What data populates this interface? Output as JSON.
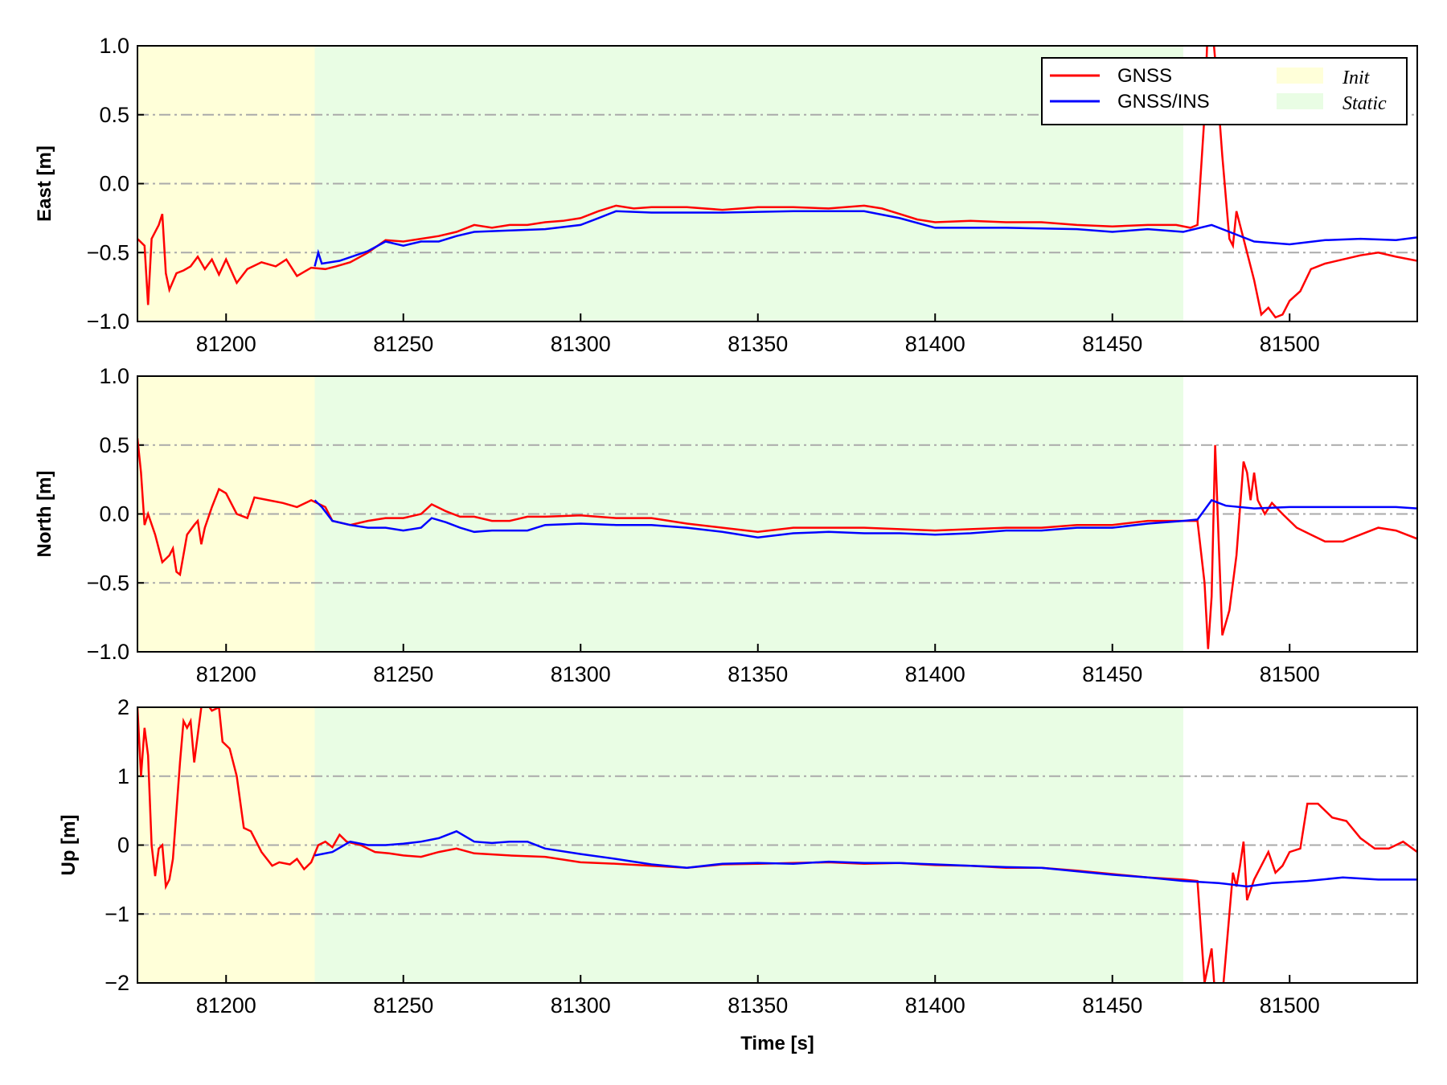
{
  "chart_data": [
    {
      "type": "line",
      "ylabel": "East [m]",
      "xlim": [
        81175,
        81536
      ],
      "ylim": [
        -1,
        1
      ],
      "yticks": [
        "1.0",
        "0.5",
        "0.0",
        "−0.5",
        "−1.0"
      ],
      "ytick_values": [
        1,
        0.5,
        0,
        -0.5,
        -1
      ],
      "xticks": [
        "81200",
        "81250",
        "81300",
        "81350",
        "81400",
        "81450",
        "81500"
      ],
      "series": [
        {
          "name": "GNSS",
          "color": "#ff0000",
          "x": [
            81175,
            81177,
            81178,
            81179,
            81181,
            81182,
            81183,
            81184,
            81186,
            81188,
            81190,
            81192,
            81194,
            81196,
            81198,
            81200,
            81203,
            81206,
            81210,
            81214,
            81217,
            81220,
            81224,
            81228,
            81231,
            81235,
            81240,
            81245,
            81250,
            81255,
            81260,
            81265,
            81270,
            81275,
            81280,
            81285,
            81290,
            81295,
            81300,
            81305,
            81310,
            81315,
            81320,
            81330,
            81340,
            81350,
            81360,
            81370,
            81380,
            81385,
            81390,
            81395,
            81400,
            81410,
            81420,
            81430,
            81440,
            81450,
            81460,
            81468,
            81472,
            81474,
            81476,
            81477,
            81478,
            81479,
            81481,
            81483,
            81484,
            81485,
            81487,
            81490,
            81492,
            81494,
            81496,
            81498,
            81500,
            81503,
            81506,
            81510,
            81515,
            81520,
            81525,
            81530,
            81536
          ],
          "y": [
            -0.4,
            -0.45,
            -0.88,
            -0.4,
            -0.3,
            -0.22,
            -0.65,
            -0.77,
            -0.65,
            -0.63,
            -0.6,
            -0.53,
            -0.62,
            -0.55,
            -0.66,
            -0.55,
            -0.72,
            -0.62,
            -0.57,
            -0.6,
            -0.55,
            -0.67,
            -0.61,
            -0.62,
            -0.6,
            -0.57,
            -0.5,
            -0.41,
            -0.42,
            -0.4,
            -0.38,
            -0.35,
            -0.3,
            -0.32,
            -0.3,
            -0.3,
            -0.28,
            -0.27,
            -0.25,
            -0.2,
            -0.16,
            -0.18,
            -0.17,
            -0.17,
            -0.19,
            -0.17,
            -0.17,
            -0.18,
            -0.16,
            -0.18,
            -0.22,
            -0.26,
            -0.28,
            -0.27,
            -0.28,
            -0.28,
            -0.3,
            -0.31,
            -0.3,
            -0.3,
            -0.32,
            -0.3,
            0.5,
            1.2,
            1.2,
            0.9,
            0.2,
            -0.4,
            -0.45,
            -0.2,
            -0.4,
            -0.7,
            -0.95,
            -0.9,
            -0.97,
            -0.95,
            -0.85,
            -0.78,
            -0.62,
            -0.58,
            -0.55,
            -0.52,
            -0.5,
            -0.53,
            -0.56
          ]
        },
        {
          "name": "GNSS/INS",
          "color": "#0000ff",
          "x": [
            81225,
            81226,
            81227,
            81232,
            81240,
            81245,
            81250,
            81255,
            81260,
            81265,
            81270,
            81280,
            81290,
            81300,
            81305,
            81310,
            81320,
            81340,
            81360,
            81380,
            81390,
            81400,
            81420,
            81440,
            81450,
            81460,
            81470,
            81478,
            81483,
            81490,
            81500,
            81510,
            81520,
            81530,
            81536
          ],
          "y": [
            -0.6,
            -0.5,
            -0.58,
            -0.56,
            -0.49,
            -0.42,
            -0.45,
            -0.42,
            -0.42,
            -0.38,
            -0.35,
            -0.34,
            -0.33,
            -0.3,
            -0.25,
            -0.2,
            -0.21,
            -0.21,
            -0.2,
            -0.2,
            -0.25,
            -0.32,
            -0.32,
            -0.33,
            -0.35,
            -0.33,
            -0.35,
            -0.3,
            -0.35,
            -0.42,
            -0.44,
            -0.41,
            -0.4,
            -0.41,
            -0.39
          ]
        }
      ],
      "shaded": [
        {
          "name": "Init",
          "from": 81175,
          "to": 81225,
          "color": "#ffffd9"
        },
        {
          "name": "Static",
          "from": 81225,
          "to": 81470,
          "color": "#e9fde4"
        }
      ],
      "legend": {
        "placement": "top-right",
        "entries": [
          "GNSS",
          "GNSS/INS",
          "Init",
          "Static"
        ]
      },
      "grid": "horizontal dash-dot"
    },
    {
      "type": "line",
      "ylabel": "North [m]",
      "xlim": [
        81175,
        81536
      ],
      "ylim": [
        -1,
        1
      ],
      "yticks": [
        "1.0",
        "0.5",
        "0.0",
        "−0.5",
        "−1.0"
      ],
      "ytick_values": [
        1,
        0.5,
        0,
        -0.5,
        -1
      ],
      "xticks": [
        "81200",
        "81250",
        "81300",
        "81350",
        "81400",
        "81450",
        "81500"
      ],
      "series": [
        {
          "name": "GNSS",
          "color": "#ff0000",
          "x": [
            81175,
            81176,
            81177,
            81178,
            81180,
            81182,
            81184,
            81185,
            81186,
            81187,
            81189,
            81191,
            81192,
            81193,
            81194,
            81196,
            81198,
            81200,
            81203,
            81206,
            81208,
            81212,
            81216,
            81220,
            81224,
            81228,
            81230,
            81235,
            81240,
            81245,
            81250,
            81255,
            81258,
            81262,
            81266,
            81270,
            81275,
            81280,
            81285,
            81290,
            81300,
            81310,
            81320,
            81330,
            81340,
            81350,
            81360,
            81370,
            81380,
            81390,
            81400,
            81410,
            81420,
            81430,
            81440,
            81450,
            81460,
            81470,
            81474,
            81476,
            81477,
            81478,
            81479,
            81480,
            81481,
            81483,
            81485,
            81487,
            81488,
            81489,
            81490,
            81491,
            81493,
            81495,
            81498,
            81502,
            81506,
            81510,
            81515,
            81520,
            81525,
            81530,
            81536
          ],
          "y": [
            0.55,
            0.3,
            -0.08,
            0.0,
            -0.15,
            -0.35,
            -0.3,
            -0.25,
            -0.42,
            -0.44,
            -0.15,
            -0.08,
            -0.05,
            -0.22,
            -0.1,
            0.05,
            0.18,
            0.15,
            0.0,
            -0.03,
            0.12,
            0.1,
            0.08,
            0.05,
            0.1,
            0.05,
            -0.05,
            -0.08,
            -0.05,
            -0.03,
            -0.03,
            0.0,
            0.07,
            0.02,
            -0.02,
            -0.02,
            -0.05,
            -0.05,
            -0.02,
            -0.02,
            -0.01,
            -0.03,
            -0.03,
            -0.07,
            -0.1,
            -0.13,
            -0.1,
            -0.1,
            -0.1,
            -0.11,
            -0.12,
            -0.11,
            -0.1,
            -0.1,
            -0.08,
            -0.08,
            -0.05,
            -0.05,
            -0.05,
            -0.5,
            -0.98,
            -0.6,
            0.5,
            -0.2,
            -0.88,
            -0.7,
            -0.3,
            0.38,
            0.3,
            0.1,
            0.3,
            0.1,
            0.0,
            0.08,
            0.0,
            -0.1,
            -0.15,
            -0.2,
            -0.2,
            -0.15,
            -0.1,
            -0.12,
            -0.18
          ]
        },
        {
          "name": "GNSS/INS",
          "color": "#0000ff",
          "x": [
            81225,
            81227,
            81230,
            81235,
            81240,
            81245,
            81250,
            81255,
            81258,
            81262,
            81266,
            81270,
            81275,
            81280,
            81285,
            81290,
            81300,
            81310,
            81320,
            81330,
            81340,
            81350,
            81360,
            81370,
            81380,
            81390,
            81400,
            81410,
            81420,
            81430,
            81440,
            81450,
            81460,
            81470,
            81474,
            81478,
            81482,
            81490,
            81500,
            81510,
            81520,
            81530,
            81536
          ],
          "y": [
            0.1,
            0.05,
            -0.05,
            -0.08,
            -0.1,
            -0.1,
            -0.12,
            -0.1,
            -0.03,
            -0.06,
            -0.1,
            -0.13,
            -0.12,
            -0.12,
            -0.12,
            -0.08,
            -0.07,
            -0.08,
            -0.08,
            -0.1,
            -0.13,
            -0.17,
            -0.14,
            -0.13,
            -0.14,
            -0.14,
            -0.15,
            -0.14,
            -0.12,
            -0.12,
            -0.1,
            -0.1,
            -0.07,
            -0.05,
            -0.04,
            0.1,
            0.06,
            0.04,
            0.05,
            0.05,
            0.05,
            0.05,
            0.04
          ]
        }
      ],
      "shaded": [
        {
          "name": "Init",
          "from": 81175,
          "to": 81225,
          "color": "#ffffd9"
        },
        {
          "name": "Static",
          "from": 81225,
          "to": 81470,
          "color": "#e9fde4"
        }
      ],
      "grid": "horizontal dash-dot"
    },
    {
      "type": "line",
      "ylabel": "Up [m]",
      "xlabel": "Time [s]",
      "xlim": [
        81175,
        81536
      ],
      "ylim": [
        -2,
        2
      ],
      "yticks": [
        "2",
        "1",
        "0",
        "−1",
        "−2"
      ],
      "ytick_values": [
        2,
        1,
        0,
        -1,
        -2
      ],
      "xticks": [
        "81200",
        "81250",
        "81300",
        "81350",
        "81400",
        "81450",
        "81500"
      ],
      "series": [
        {
          "name": "GNSS",
          "color": "#ff0000",
          "x": [
            81175,
            81176,
            81177,
            81178,
            81179,
            81180,
            81181,
            81182,
            81183,
            81184,
            81185,
            81187,
            81188,
            81189,
            81190,
            81191,
            81193,
            81194,
            81196,
            81198,
            81199,
            81201,
            81203,
            81205,
            81207,
            81210,
            81213,
            81215,
            81218,
            81220,
            81222,
            81224,
            81226,
            81228,
            81230,
            81232,
            81234,
            81238,
            81242,
            81246,
            81250,
            81255,
            81260,
            81265,
            81270,
            81280,
            81290,
            81300,
            81310,
            81320,
            81330,
            81340,
            81350,
            81360,
            81370,
            81380,
            81390,
            81400,
            81410,
            81420,
            81430,
            81440,
            81450,
            81460,
            81470,
            81474,
            81476,
            81478,
            81479,
            81481,
            81483,
            81484,
            81485,
            81486,
            81487,
            81488,
            81490,
            81492,
            81494,
            81496,
            81498,
            81500,
            81503,
            81505,
            81508,
            81512,
            81516,
            81520,
            81524,
            81528,
            81532,
            81536
          ],
          "y": [
            2.0,
            1.0,
            1.7,
            1.3,
            0.0,
            -0.45,
            -0.05,
            0.0,
            -0.6,
            -0.5,
            -0.2,
            1.2,
            1.8,
            1.7,
            1.8,
            1.2,
            2.0,
            2.1,
            1.95,
            2.0,
            1.5,
            1.4,
            1.0,
            0.25,
            0.2,
            -0.1,
            -0.3,
            -0.25,
            -0.28,
            -0.2,
            -0.35,
            -0.25,
            0.0,
            0.05,
            -0.03,
            0.15,
            0.05,
            0.0,
            -0.1,
            -0.12,
            -0.15,
            -0.17,
            -0.1,
            -0.05,
            -0.12,
            -0.15,
            -0.17,
            -0.25,
            -0.27,
            -0.3,
            -0.33,
            -0.28,
            -0.27,
            -0.26,
            -0.25,
            -0.27,
            -0.26,
            -0.29,
            -0.3,
            -0.33,
            -0.33,
            -0.37,
            -0.42,
            -0.47,
            -0.5,
            -0.52,
            -2.0,
            -1.5,
            -2.2,
            -2.2,
            -1.0,
            -0.4,
            -0.6,
            -0.3,
            0.05,
            -0.8,
            -0.5,
            -0.3,
            -0.1,
            -0.4,
            -0.3,
            -0.1,
            -0.05,
            0.6,
            0.6,
            0.4,
            0.35,
            0.1,
            -0.05,
            -0.05,
            0.05,
            -0.1
          ]
        },
        {
          "name": "GNSS/INS",
          "color": "#0000ff",
          "x": [
            81225,
            81230,
            81235,
            81240,
            81245,
            81250,
            81255,
            81260,
            81265,
            81270,
            81275,
            81280,
            81285,
            81290,
            81300,
            81310,
            81320,
            81330,
            81340,
            81350,
            81360,
            81370,
            81380,
            81390,
            81400,
            81410,
            81420,
            81430,
            81440,
            81450,
            81460,
            81470,
            81480,
            81488,
            81495,
            81505,
            81515,
            81525,
            81536
          ],
          "y": [
            -0.15,
            -0.1,
            0.05,
            0.0,
            0.0,
            0.02,
            0.05,
            0.1,
            0.2,
            0.05,
            0.03,
            0.05,
            0.05,
            -0.05,
            -0.13,
            -0.2,
            -0.28,
            -0.33,
            -0.27,
            -0.26,
            -0.27,
            -0.24,
            -0.26,
            -0.26,
            -0.28,
            -0.3,
            -0.32,
            -0.33,
            -0.38,
            -0.43,
            -0.47,
            -0.52,
            -0.55,
            -0.6,
            -0.55,
            -0.52,
            -0.47,
            -0.5,
            -0.5
          ]
        }
      ],
      "shaded": [
        {
          "name": "Init",
          "from": 81175,
          "to": 81225,
          "color": "#ffffd9"
        },
        {
          "name": "Static",
          "from": 81225,
          "to": 81470,
          "color": "#e9fde4"
        }
      ],
      "grid": "horizontal dash-dot"
    }
  ]
}
